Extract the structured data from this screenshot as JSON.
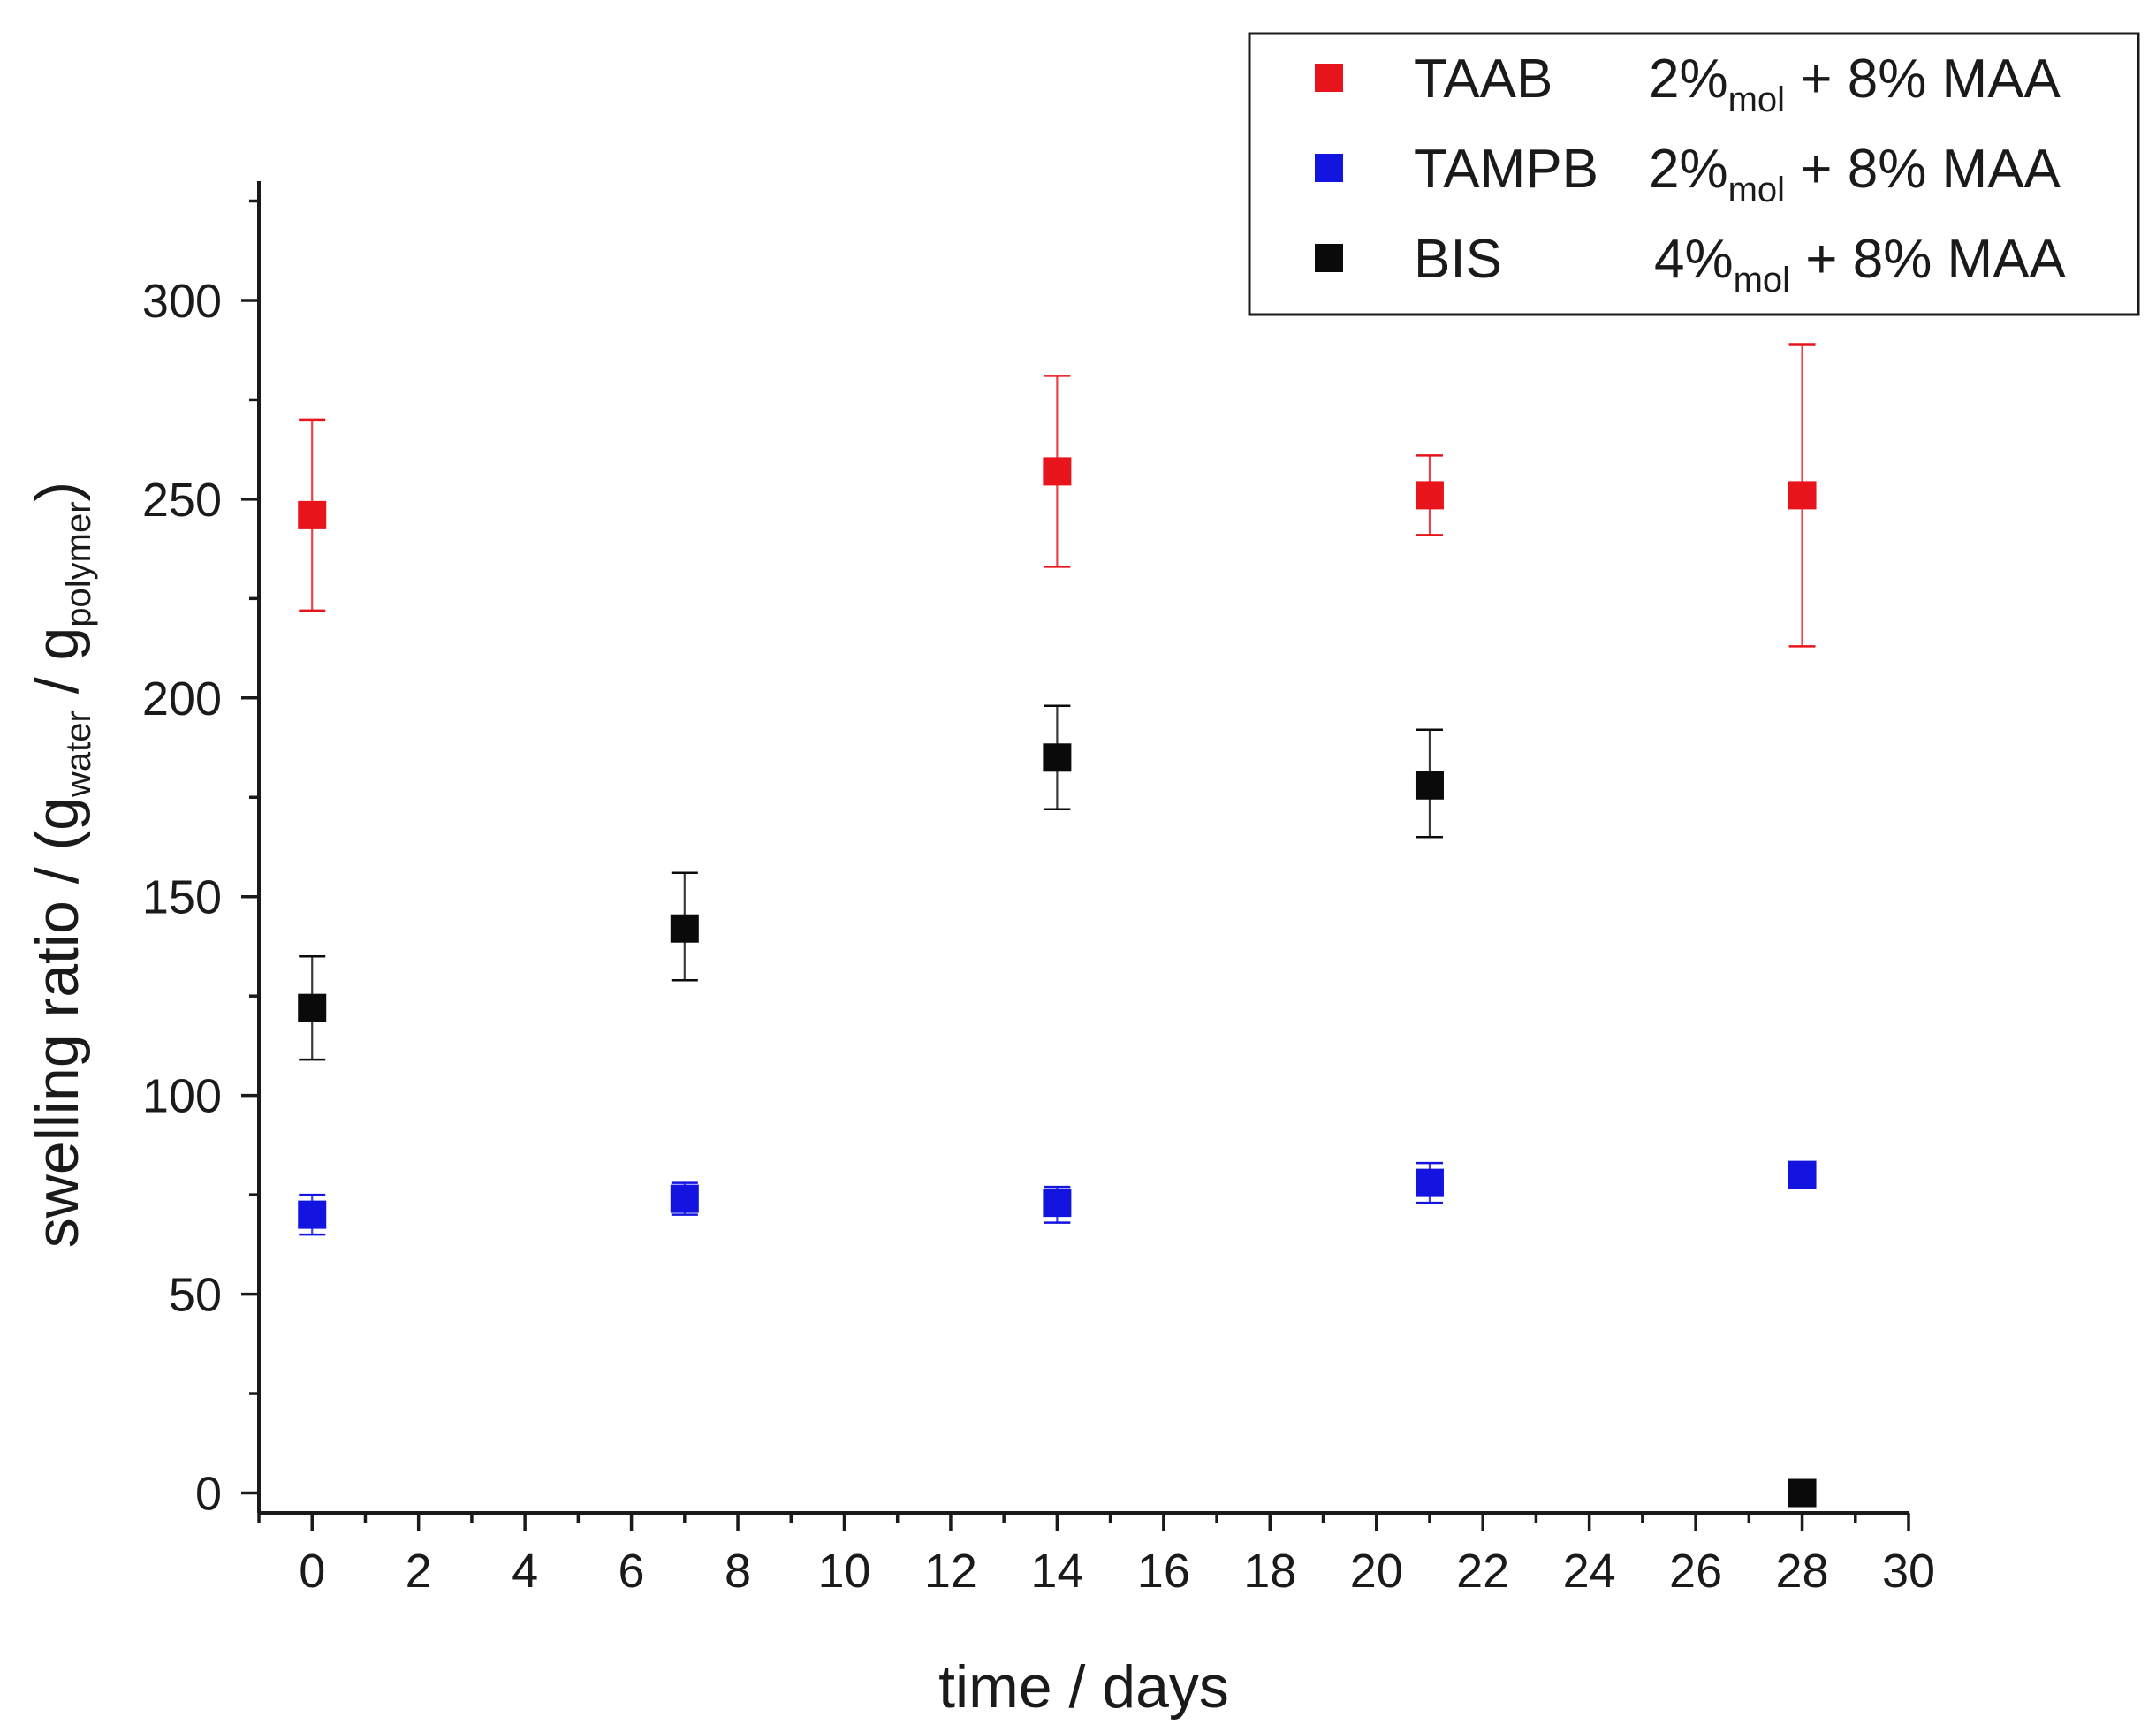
{
  "chart_data": {
    "type": "scatter",
    "xlabel": "time / days",
    "ylabel": {
      "prefix": "swelling ratio / (g",
      "sub1": "water",
      "mid": " / g",
      "sub2": "polymer",
      "suffix": ")"
    },
    "xlim": [
      -1,
      30
    ],
    "ylim": [
      -5,
      330
    ],
    "x_ticks": [
      0,
      2,
      4,
      6,
      8,
      10,
      12,
      14,
      16,
      18,
      20,
      22,
      24,
      26,
      28,
      30
    ],
    "y_ticks": [
      0,
      50,
      100,
      150,
      200,
      250,
      300
    ],
    "grid": false,
    "legend_position": "top-right",
    "series": [
      {
        "name": "TAAB",
        "legend_amount": "2%",
        "legend_sub": "mol",
        "legend_suffix": " + 8% MAA",
        "color": "#e8141c",
        "points": [
          {
            "x": 0,
            "y": 246,
            "err_low": 222,
            "err_high": 270
          },
          {
            "x": 14,
            "y": 257,
            "err_low": 233,
            "err_high": 281
          },
          {
            "x": 21,
            "y": 251,
            "err_low": 241,
            "err_high": 261
          },
          {
            "x": 28,
            "y": 251,
            "err_low": 213,
            "err_high": 289
          }
        ]
      },
      {
        "name": "TAMPB",
        "legend_amount": "2%",
        "legend_sub": "mol",
        "legend_suffix": " + 8% MAA",
        "color": "#1414e0",
        "points": [
          {
            "x": 0,
            "y": 70,
            "err_low": 65,
            "err_high": 75
          },
          {
            "x": 7,
            "y": 74,
            "err_low": 70,
            "err_high": 78
          },
          {
            "x": 14,
            "y": 73,
            "err_low": 68,
            "err_high": 77
          },
          {
            "x": 21,
            "y": 78,
            "err_low": 73,
            "err_high": 83
          },
          {
            "x": 28,
            "y": 80,
            "err_low": 77,
            "err_high": 83
          }
        ]
      },
      {
        "name": "BIS",
        "legend_amount": "4%",
        "legend_sub": "mol",
        "legend_suffix": " + 8% MAA",
        "color": "#0a0a0a",
        "points": [
          {
            "x": 0,
            "y": 122,
            "err_low": 109,
            "err_high": 135
          },
          {
            "x": 7,
            "y": 142,
            "err_low": 129,
            "err_high": 156
          },
          {
            "x": 14,
            "y": 185,
            "err_low": 172,
            "err_high": 198
          },
          {
            "x": 21,
            "y": 178,
            "err_low": 165,
            "err_high": 192
          },
          {
            "x": 28,
            "y": 0,
            "err_low": 0,
            "err_high": 0
          }
        ]
      }
    ]
  }
}
